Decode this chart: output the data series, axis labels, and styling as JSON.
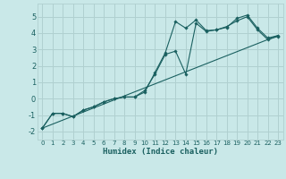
{
  "xlabel": "Humidex (Indice chaleur)",
  "xlim": [
    -0.5,
    23.5
  ],
  "ylim": [
    -2.5,
    5.8
  ],
  "xticks": [
    0,
    1,
    2,
    3,
    4,
    5,
    6,
    7,
    8,
    9,
    10,
    11,
    12,
    13,
    14,
    15,
    16,
    17,
    18,
    19,
    20,
    21,
    22,
    23
  ],
  "yticks": [
    -2,
    -1,
    0,
    1,
    2,
    3,
    4,
    5
  ],
  "bg_color": "#c9e8e8",
  "grid_color": "#b0d0d0",
  "line_color": "#1a6060",
  "curve1_x": [
    0,
    1,
    2,
    3,
    4,
    5,
    6,
    7,
    8,
    9,
    10,
    11,
    12,
    13,
    14,
    15,
    16,
    17,
    18,
    19,
    20,
    21,
    22,
    23
  ],
  "curve1_y": [
    -1.8,
    -0.9,
    -0.9,
    -1.1,
    -0.7,
    -0.5,
    -0.2,
    0.0,
    0.1,
    0.1,
    0.4,
    1.6,
    2.8,
    4.7,
    4.3,
    4.8,
    4.15,
    4.2,
    4.35,
    4.9,
    5.1,
    4.3,
    3.7,
    3.85
  ],
  "curve2_x": [
    0,
    1,
    2,
    3,
    4,
    5,
    6,
    7,
    8,
    9,
    10,
    11,
    12,
    13,
    14,
    15,
    16,
    17,
    18,
    19,
    20,
    21,
    22,
    23
  ],
  "curve2_y": [
    -1.8,
    -0.9,
    -0.9,
    -1.1,
    -0.7,
    -0.5,
    -0.2,
    0.0,
    0.1,
    0.1,
    0.5,
    1.5,
    2.7,
    2.9,
    1.5,
    4.6,
    4.1,
    4.2,
    4.4,
    4.75,
    5.0,
    4.2,
    3.6,
    3.8
  ],
  "line_x": [
    0,
    23
  ],
  "line_y": [
    -1.8,
    3.85
  ]
}
